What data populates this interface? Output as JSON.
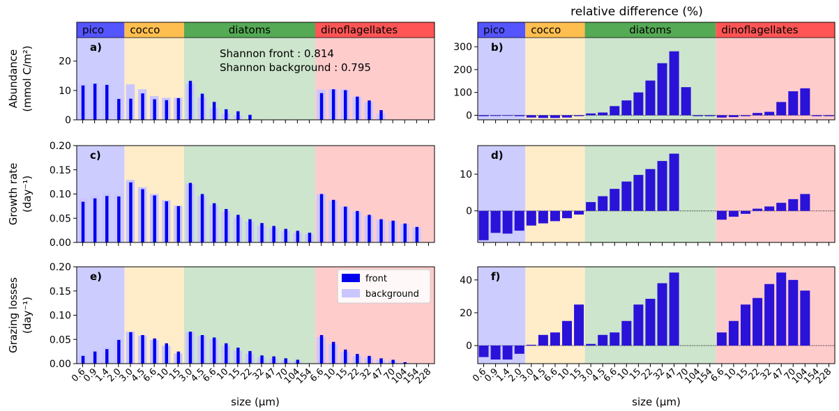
{
  "figure_title": "relative difference (%)",
  "x_label": "size (µm)",
  "size_labels": [
    "0.6",
    "0.9",
    "1.4",
    "2.0",
    "3.0",
    "4.5",
    "6.6",
    "10",
    "15",
    "3.0",
    "4.5",
    "6.6",
    "10",
    "15",
    "22",
    "32",
    "47",
    "70",
    "104",
    "154",
    "6.6",
    "10",
    "15",
    "22",
    "32",
    "47",
    "70",
    "104",
    "154",
    "228"
  ],
  "groups": [
    {
      "name": "pico",
      "band_color": "#5555ff",
      "bg_color": "#ccccff",
      "slots": [
        0,
        4
      ]
    },
    {
      "name": "cocco",
      "band_color": "#ffbf50",
      "bg_color": "#ffecc9",
      "slots": [
        4,
        9
      ]
    },
    {
      "name": "diatoms",
      "band_color": "#55aa55",
      "bg_color": "#cce5cc",
      "slots": [
        9,
        20
      ]
    },
    {
      "name": "dinoflagellates",
      "band_color": "#ff5555",
      "bg_color": "#ffcccc",
      "slots": [
        20,
        30
      ]
    }
  ],
  "colors": {
    "front": "#0000ee",
    "background": "#c9c6ff",
    "diff_bar": "#2a12d8"
  },
  "legend": {
    "front": "front",
    "background": "background"
  },
  "annotations": {
    "shannon_front": "Shannon front : 0.814",
    "shannon_background": "Shannon background : 0.795"
  },
  "chart_data": [
    {
      "panel": "a)",
      "type": "bar",
      "ylabel_line1": "Abundance",
      "ylabel_line2": "(mmol C/m²)",
      "ylim": [
        0,
        28
      ],
      "yticks": [
        0,
        10,
        20
      ],
      "series": [
        {
          "name": "front",
          "values": [
            11.7,
            12.3,
            11.9,
            7.1,
            7.2,
            9.0,
            7.0,
            6.7,
            7.4,
            13.3,
            8.9,
            6.1,
            3.6,
            2.9,
            1.7,
            null,
            null,
            null,
            null,
            null,
            9.1,
            10.4,
            10.1,
            7.9,
            6.6,
            3.3,
            null,
            null,
            null,
            null
          ]
        },
        {
          "name": "background",
          "values": [
            12.2,
            12.4,
            11.9,
            7.3,
            12.1,
            10.4,
            8.1,
            7.5,
            7.5,
            12.3,
            7.7,
            4.0,
            2.1,
            1.5,
            null,
            null,
            null,
            null,
            null,
            null,
            10.3,
            10.5,
            10.3,
            7.9,
            6.0,
            2.1,
            null,
            null,
            null,
            null
          ]
        }
      ]
    },
    {
      "panel": "b)",
      "type": "bar",
      "ylim": [
        -20,
        340
      ],
      "yticks": [
        0,
        100,
        200,
        300
      ],
      "values": [
        -4,
        -3,
        -2,
        -4,
        -10,
        -12,
        -12,
        -10,
        -4,
        8,
        12,
        40,
        65,
        100,
        152,
        228,
        280,
        123,
        -4,
        -4,
        -10,
        -8,
        -4,
        10,
        15,
        58,
        105,
        118,
        -4,
        -4
      ]
    },
    {
      "panel": "c)",
      "type": "bar",
      "ylabel_line1": "Growth rate",
      "ylabel_line2": "(day⁻¹)",
      "ylim": [
        0,
        0.2
      ],
      "yticks": [
        0.0,
        0.05,
        0.1,
        0.15,
        0.2
      ],
      "series": [
        {
          "name": "front",
          "values": [
            0.084,
            0.091,
            0.096,
            0.095,
            0.124,
            0.11,
            0.097,
            0.085,
            0.075,
            0.123,
            0.1,
            0.081,
            0.069,
            0.057,
            0.048,
            0.04,
            0.034,
            0.028,
            0.024,
            0.02,
            0.1,
            0.088,
            0.074,
            0.065,
            0.057,
            0.048,
            0.045,
            0.039,
            0.032,
            null
          ]
        },
        {
          "name": "background",
          "values": [
            0.091,
            0.097,
            0.103,
            0.1,
            0.129,
            0.114,
            0.1,
            0.087,
            0.076,
            0.12,
            0.096,
            0.077,
            0.064,
            0.052,
            0.043,
            0.035,
            0.03,
            0.024,
            0.02,
            0.017,
            0.1,
            0.086,
            0.074,
            0.064,
            0.055,
            0.047,
            0.044,
            0.038,
            0.031,
            null
          ]
        }
      ]
    },
    {
      "panel": "d)",
      "type": "bar",
      "ylim": [
        -8.6,
        17.8
      ],
      "yticks": [
        0,
        10
      ],
      "values": [
        -8,
        -6,
        -6.2,
        -5.4,
        -4,
        -3.4,
        -2.8,
        -2,
        -1,
        2.4,
        4,
        6,
        8,
        9.8,
        11.4,
        13.6,
        15.6,
        null,
        null,
        null,
        -2.4,
        -1.6,
        -0.8,
        0.6,
        1.2,
        2.2,
        3.2,
        4.6,
        null,
        null
      ]
    },
    {
      "panel": "e)",
      "type": "bar",
      "ylabel_line1": "Grazing losses",
      "ylabel_line2": "(day⁻¹)",
      "ylim": [
        0,
        0.2
      ],
      "yticks": [
        0.0,
        0.05,
        0.1,
        0.15,
        0.2
      ],
      "series": [
        {
          "name": "front",
          "values": [
            0.016,
            0.025,
            0.03,
            0.049,
            0.065,
            0.059,
            0.052,
            0.042,
            0.025,
            0.066,
            0.059,
            0.054,
            0.042,
            0.033,
            0.026,
            0.017,
            0.015,
            0.011,
            0.008,
            null,
            0.059,
            0.045,
            0.029,
            0.02,
            0.016,
            0.011,
            0.008,
            0.003,
            null,
            null
          ]
        },
        {
          "name": "background",
          "values": [
            0.018,
            0.028,
            0.034,
            0.051,
            0.066,
            0.058,
            0.049,
            0.037,
            0.021,
            0.065,
            0.057,
            0.05,
            0.037,
            0.027,
            0.02,
            0.013,
            0.011,
            0.007,
            0.005,
            null,
            0.055,
            0.04,
            0.024,
            0.016,
            0.013,
            0.008,
            0.006,
            0.002,
            null,
            null
          ]
        }
      ]
    },
    {
      "panel": "f)",
      "type": "bar",
      "ylim": [
        -11,
        48
      ],
      "yticks": [
        0,
        20,
        40
      ],
      "values": [
        -7,
        -8.5,
        -8.5,
        -5,
        0.5,
        6.5,
        8,
        15,
        25,
        1,
        6.5,
        8,
        15,
        25,
        28.5,
        38,
        44.5,
        null,
        null,
        null,
        8,
        15,
        25,
        29,
        37.5,
        44.5,
        40,
        33.5,
        null,
        null
      ]
    }
  ]
}
